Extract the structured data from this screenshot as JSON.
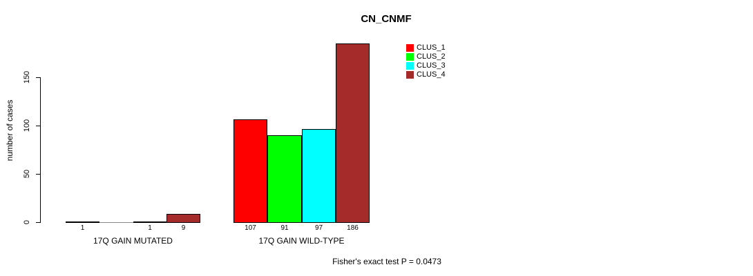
{
  "chart_data": {
    "type": "bar",
    "title": "CN_CNMF",
    "xlabel": "",
    "ylabel": "number of cases",
    "yticks": [
      0,
      50,
      100,
      150
    ],
    "ylim": [
      0,
      195
    ],
    "grid": false,
    "legend_position": "top-right",
    "categories": [
      "17Q GAIN MUTATED",
      "17Q GAIN WILD-TYPE"
    ],
    "series": [
      {
        "name": "CLUS_1",
        "color": "#FF0000",
        "values": [
          1,
          107
        ]
      },
      {
        "name": "CLUS_2",
        "color": "#00FF00",
        "values": [
          0,
          91
        ]
      },
      {
        "name": "CLUS_3",
        "color": "#00FFFF",
        "values": [
          1,
          97
        ]
      },
      {
        "name": "CLUS_4",
        "color": "#A52A2A",
        "values": [
          9,
          186
        ]
      }
    ],
    "bar_labels": [
      [
        "1",
        "",
        "1",
        "9"
      ],
      [
        "107",
        "91",
        "97",
        "186"
      ]
    ],
    "annotation": "Fisher's exact test P = 0.0473",
    "bar_border_color": "#000000",
    "zero_bar_color": "#888888"
  }
}
